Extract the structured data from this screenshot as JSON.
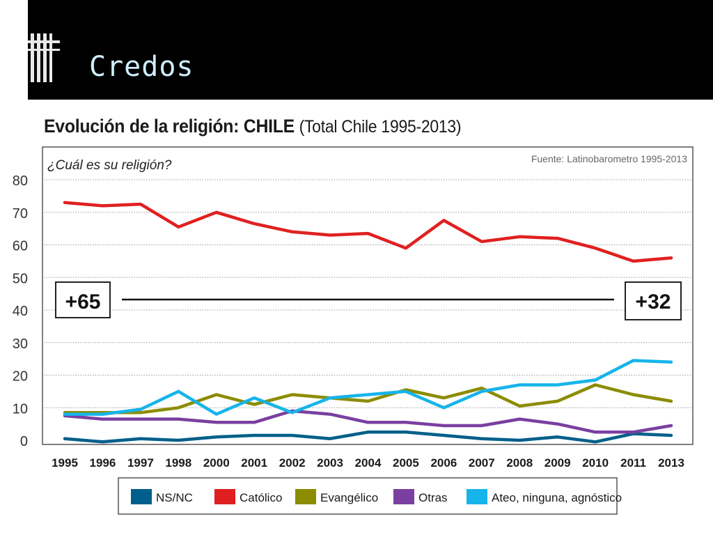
{
  "slide": {
    "title": "Credos"
  },
  "chart_data": {
    "type": "line",
    "title": "Evolución de la religión: CHILE",
    "subtitle": "(Total Chile 1995-2013)",
    "question": "¿Cuál es su religión?",
    "source": "Fuente: Latinobarometro 1995-2013",
    "categories": [
      "1995",
      "1996",
      "1997",
      "1998",
      "2000",
      "2001",
      "2002",
      "2003",
      "2004",
      "2005",
      "2006",
      "2007",
      "2008",
      "2009",
      "2010",
      "2011",
      "2013"
    ],
    "ylim": [
      0,
      80
    ],
    "yticks": [
      0,
      10,
      20,
      30,
      40,
      50,
      60,
      70,
      80
    ],
    "grid": true,
    "legend_position": "bottom",
    "series": [
      {
        "name": "NS/NC",
        "color": "#005f8a",
        "values": [
          0.5,
          -0.5,
          0.5,
          0,
          1,
          1.5,
          1.5,
          0.5,
          2.5,
          2.5,
          1.5,
          0.5,
          0,
          1,
          -0.5,
          2,
          1.5
        ]
      },
      {
        "name": "Católico",
        "color": "#e02020",
        "values": [
          73,
          72,
          72.5,
          65.5,
          70,
          66.5,
          64,
          63,
          63.5,
          59,
          67.5,
          61,
          62.5,
          62,
          59,
          55,
          56
        ]
      },
      {
        "name": "Evangélico",
        "color": "#8c8c00",
        "values": [
          8.5,
          8.5,
          8.5,
          10,
          14,
          11,
          14,
          13,
          12,
          15.5,
          13,
          16,
          10.5,
          12,
          17,
          14,
          12
        ]
      },
      {
        "name": "Otras",
        "color": "#7a3fa0",
        "values": [
          7.5,
          6.5,
          6.5,
          6.5,
          5.5,
          5.5,
          9,
          8,
          5.5,
          5.5,
          4.5,
          4.5,
          6.5,
          5,
          2.5,
          2.5,
          4.5
        ]
      },
      {
        "name": "Ateo, ninguna, agnóstico",
        "color": "#16b4ea",
        "values": [
          8,
          8,
          9.5,
          15,
          8,
          13,
          8.5,
          13,
          14,
          15,
          10,
          15,
          17,
          17,
          18.5,
          24.5,
          24
        ]
      }
    ],
    "annotations": {
      "start_label": "+65",
      "end_label": "+32"
    }
  }
}
